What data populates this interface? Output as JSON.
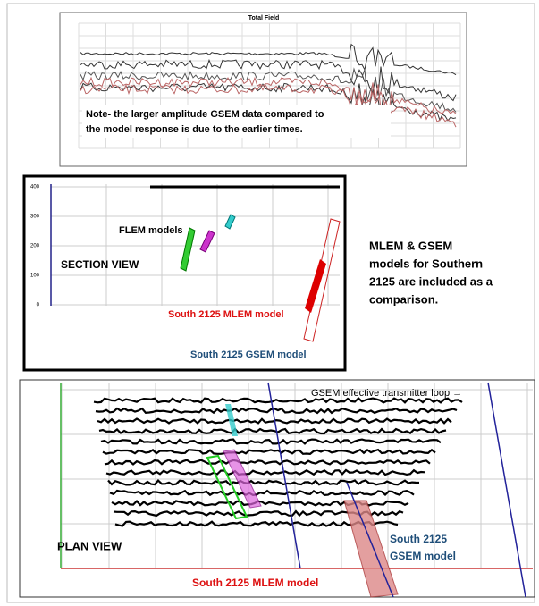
{
  "top_panel": {
    "title": "Total Field",
    "note": [
      "Note- the larger amplitude GSEM data compared to",
      "the model response is due to the earlier times."
    ]
  },
  "section_view": {
    "yticks": [
      "400",
      "300",
      "200",
      "100",
      "0"
    ],
    "view_label": "SECTION VIEW",
    "flem_label": "FLEM models",
    "mlem_label": "South 2125 MLEM model",
    "gsem_label": "South 2125 GSEM model"
  },
  "side_note": [
    "MLEM & GSEM",
    "models for Southern",
    "2125 are included as a",
    "comparison."
  ],
  "plan_view": {
    "loop_label": "GSEM effective transmitter loop →",
    "view_label": "PLAN VIEW",
    "gsem_label": [
      "South 2125",
      "GSEM model"
    ],
    "mlem_label": "South 2125 MLEM model"
  }
}
